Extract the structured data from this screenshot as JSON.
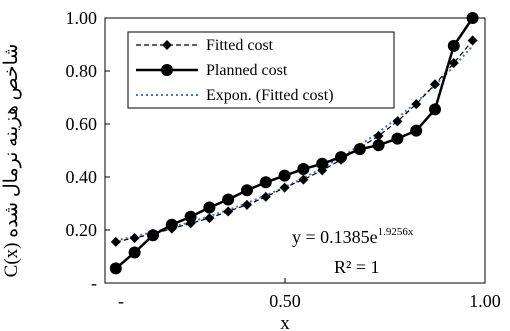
{
  "chart_data": {
    "type": "line",
    "xlabel": "x",
    "ylabel": "C(x) شاخص هزینه نرمال شده",
    "xlim": [
      0.05,
      1.0
    ],
    "ylim": [
      0,
      1.0
    ],
    "x_ticks": [
      {
        "value": 0.05,
        "label": "-"
      },
      {
        "value": 0.5,
        "label": "0.50"
      },
      {
        "value": 1.0,
        "label": "1.00"
      }
    ],
    "y_ticks": [
      {
        "value": 0.0,
        "label": "-"
      },
      {
        "value": 0.2,
        "label": "0.20"
      },
      {
        "value": 0.4,
        "label": "0.40"
      },
      {
        "value": 0.6,
        "label": "0.60"
      },
      {
        "value": 0.8,
        "label": "0.80"
      },
      {
        "value": 1.0,
        "label": "1.00"
      }
    ],
    "grid": false,
    "legend_position": "top-left",
    "series": [
      {
        "name": "Fitted cost",
        "color": "#000000",
        "style": "dashed",
        "marker": "diamond",
        "x": [
          0.077,
          0.124,
          0.17,
          0.217,
          0.264,
          0.311,
          0.358,
          0.405,
          0.452,
          0.499,
          0.546,
          0.593,
          0.64,
          0.687,
          0.734,
          0.781,
          0.828,
          0.875,
          0.922,
          0.969
        ],
        "y": [
          0.155,
          0.17,
          0.185,
          0.205,
          0.225,
          0.245,
          0.27,
          0.295,
          0.325,
          0.36,
          0.39,
          0.425,
          0.465,
          0.51,
          0.555,
          0.61,
          0.675,
          0.75,
          0.83,
          0.915
        ]
      },
      {
        "name": "Planned cost",
        "color": "#000000",
        "style": "solid",
        "marker": "circle",
        "x": [
          0.077,
          0.124,
          0.17,
          0.217,
          0.264,
          0.311,
          0.358,
          0.405,
          0.452,
          0.499,
          0.546,
          0.593,
          0.64,
          0.687,
          0.734,
          0.781,
          0.828,
          0.875,
          0.922,
          0.969
        ],
        "y": [
          0.055,
          0.115,
          0.18,
          0.22,
          0.25,
          0.285,
          0.315,
          0.35,
          0.38,
          0.405,
          0.43,
          0.45,
          0.475,
          0.505,
          0.52,
          0.545,
          0.575,
          0.655,
          0.895,
          1.0
        ]
      },
      {
        "name": "Expon. (Fitted cost)",
        "color": "#4a78b8",
        "style": "dotted",
        "marker": "none",
        "equation_a": 0.1385,
        "equation_b": 1.9256
      }
    ],
    "annotations": {
      "equation_prefix": "y = 0.1385e",
      "equation_exponent": "1.9256x",
      "r_squared": "R² = 1"
    }
  }
}
